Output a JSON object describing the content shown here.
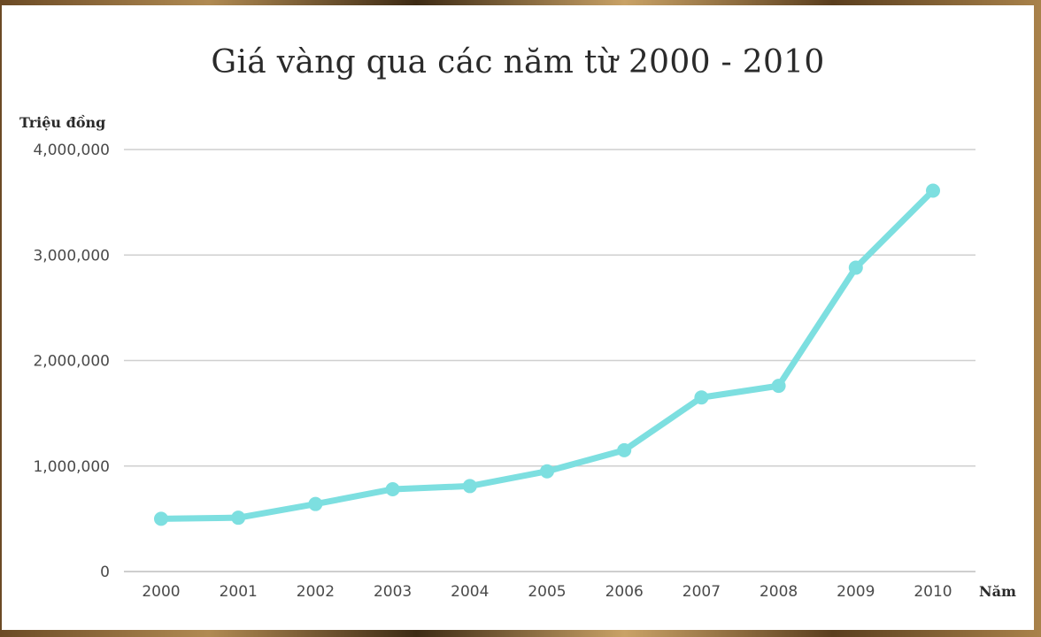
{
  "chart_data": {
    "type": "line",
    "title": "Giá vàng qua các năm từ 2000 - 2010",
    "ylabel": "Triệu đồng",
    "xlabel": "Năm",
    "categories": [
      "2000",
      "2001",
      "2002",
      "2003",
      "2004",
      "2005",
      "2006",
      "2007",
      "2008",
      "2009",
      "2010"
    ],
    "series": [
      {
        "values": [
          500000,
          510000,
          640000,
          780000,
          810000,
          950000,
          1150000,
          1650000,
          1760000,
          2880000,
          3610000
        ]
      }
    ],
    "ylim": [
      0,
      4000000
    ],
    "yticks": [
      0,
      1000000,
      2000000,
      3000000,
      4000000
    ],
    "ytick_labels": [
      "0",
      "1,000,000",
      "2,000,000",
      "3,000,000",
      "4,000,000"
    ],
    "grid": "horizontal",
    "legend": "none",
    "line_color": "#7ddfe0"
  }
}
